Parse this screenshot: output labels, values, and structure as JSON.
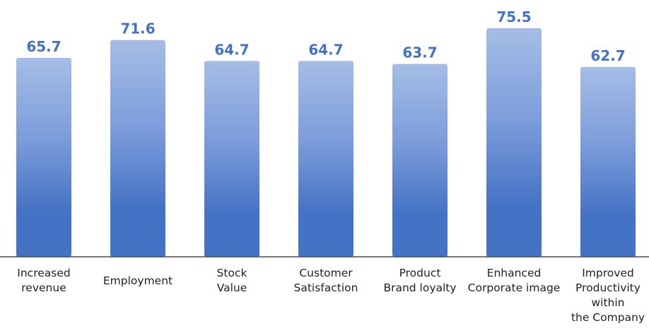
{
  "chart_data": {
    "type": "bar",
    "categories": [
      [
        "Increased",
        "revenue"
      ],
      [
        "Employment"
      ],
      [
        "Stock",
        "Value"
      ],
      [
        "Customer",
        "Satisfaction"
      ],
      [
        "Product",
        "Brand loyalty"
      ],
      [
        "Enhanced",
        "Corporate image"
      ],
      [
        "Improved",
        "Productivity",
        "within",
        "the Company"
      ]
    ],
    "values": [
      65.7,
      71.6,
      64.7,
      64.7,
      63.7,
      75.5,
      62.7
    ],
    "value_labels": [
      "65.7",
      "71.6",
      "64.7",
      "64.7",
      "63.7",
      "75.5",
      "62.7"
    ],
    "title": "",
    "xlabel": "",
    "ylabel": "",
    "grid": false,
    "legend": "none",
    "colors": {
      "bar_top": "#a5bde6",
      "bar_bottom": "#4472c4",
      "label": "#4472c4",
      "axis": "#4a4a4a",
      "text": "#222222"
    }
  }
}
